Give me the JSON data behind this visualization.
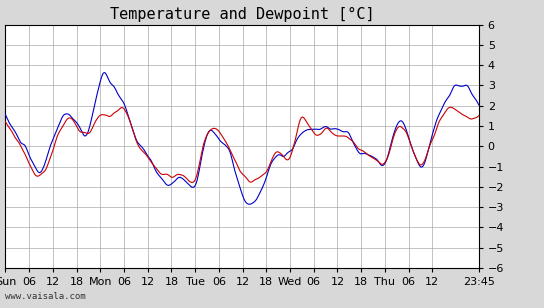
{
  "title": "Temperature and Dewpoint [°C]",
  "ylabel": "",
  "xlabel": "",
  "ylim": [
    -6,
    6
  ],
  "yticks": [
    -6,
    -5,
    -4,
    -3,
    -2,
    -1,
    0,
    1,
    2,
    3,
    4,
    5,
    6
  ],
  "temp_color": "#0000cc",
  "dewp_color": "#cc0000",
  "bg_color": "#d8d8d8",
  "plot_bg_color": "#ffffff",
  "grid_color": "#aaaaaa",
  "watermark": "www.vaisala.com",
  "title_fontsize": 11,
  "tick_fontsize": 8,
  "line_width": 0.8,
  "xtick_labels": [
    "Sun",
    "06",
    "12",
    "18",
    "Mon",
    "06",
    "12",
    "18",
    "Tue",
    "06",
    "12",
    "18",
    "Wed",
    "06",
    "12",
    "18",
    "Thu",
    "06",
    "12",
    "23:45"
  ],
  "xtick_positions": [
    0,
    6,
    12,
    18,
    24,
    30,
    36,
    42,
    48,
    54,
    60,
    66,
    72,
    78,
    84,
    90,
    96,
    102,
    108,
    119.75
  ]
}
